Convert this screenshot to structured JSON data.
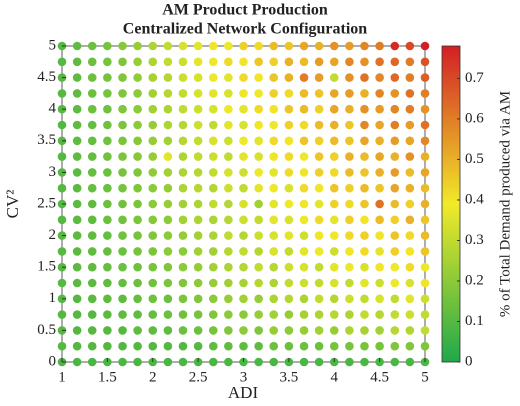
{
  "chart_data": {
    "type": "scatter-grid",
    "title": "AM Product Production",
    "subtitle": "Centralized Network Configuration",
    "xlabel": "ADI",
    "ylabel": "CV²",
    "colorbar_label": "% of Total Demand produced via AM",
    "x": [
      1,
      1.167,
      1.333,
      1.5,
      1.667,
      1.833,
      2,
      2.167,
      2.333,
      2.5,
      2.667,
      2.833,
      3,
      3.167,
      3.333,
      3.5,
      3.667,
      3.833,
      4,
      4.167,
      4.333,
      4.5,
      4.667,
      4.833,
      5
    ],
    "y": [
      0,
      0.25,
      0.5,
      0.75,
      1,
      1.25,
      1.5,
      1.75,
      2,
      2.25,
      2.5,
      2.75,
      3,
      3.25,
      3.5,
      3.75,
      4,
      4.25,
      4.5,
      4.75,
      5
    ],
    "values": [
      [
        0.08,
        0.08,
        0.08,
        0.08,
        0.08,
        0.08,
        0.08,
        0.08,
        0.08,
        0.08,
        0.08,
        0.08,
        0.08,
        0.08,
        0.08,
        0.08,
        0.08,
        0.08,
        0.08,
        0.08,
        0.08,
        0.08,
        0.08,
        0.08,
        0.08
      ],
      [
        0.1,
        0.1,
        0.1,
        0.1,
        0.1,
        0.1,
        0.1,
        0.1,
        0.1,
        0.1,
        0.12,
        0.12,
        0.12,
        0.12,
        0.14,
        0.14,
        0.14,
        0.14,
        0.16,
        0.16,
        0.16,
        0.16,
        0.18,
        0.18,
        0.18
      ],
      [
        0.1,
        0.1,
        0.1,
        0.1,
        0.1,
        0.12,
        0.12,
        0.12,
        0.14,
        0.14,
        0.16,
        0.18,
        0.2,
        0.18,
        0.22,
        0.2,
        0.22,
        0.24,
        0.22,
        0.26,
        0.25,
        0.24,
        0.28,
        0.27,
        0.3
      ],
      [
        0.1,
        0.1,
        0.1,
        0.11,
        0.12,
        0.12,
        0.13,
        0.14,
        0.15,
        0.16,
        0.18,
        0.2,
        0.2,
        0.22,
        0.24,
        0.22,
        0.25,
        0.26,
        0.28,
        0.26,
        0.3,
        0.28,
        0.3,
        0.32,
        0.3
      ],
      [
        0.1,
        0.1,
        0.11,
        0.12,
        0.12,
        0.13,
        0.15,
        0.14,
        0.17,
        0.18,
        0.2,
        0.22,
        0.24,
        0.22,
        0.26,
        0.28,
        0.26,
        0.3,
        0.28,
        0.32,
        0.3,
        0.34,
        0.3,
        0.36,
        0.32
      ],
      [
        0.1,
        0.11,
        0.11,
        0.12,
        0.13,
        0.14,
        0.15,
        0.17,
        0.18,
        0.2,
        0.22,
        0.24,
        0.25,
        0.28,
        0.26,
        0.3,
        0.32,
        0.3,
        0.34,
        0.3,
        0.36,
        0.32,
        0.38,
        0.34,
        0.4
      ],
      [
        0.1,
        0.11,
        0.12,
        0.13,
        0.14,
        0.15,
        0.16,
        0.18,
        0.2,
        0.22,
        0.24,
        0.26,
        0.28,
        0.3,
        0.28,
        0.32,
        0.34,
        0.3,
        0.36,
        0.38,
        0.34,
        0.4,
        0.38,
        0.42,
        0.38
      ],
      [
        0.1,
        0.11,
        0.12,
        0.13,
        0.14,
        0.16,
        0.17,
        0.2,
        0.2,
        0.24,
        0.24,
        0.28,
        0.3,
        0.28,
        0.34,
        0.3,
        0.36,
        0.38,
        0.32,
        0.4,
        0.42,
        0.36,
        0.44,
        0.4,
        0.46
      ],
      [
        0.1,
        0.11,
        0.12,
        0.13,
        0.15,
        0.16,
        0.18,
        0.2,
        0.22,
        0.24,
        0.26,
        0.3,
        0.28,
        0.32,
        0.34,
        0.36,
        0.32,
        0.4,
        0.38,
        0.42,
        0.44,
        0.4,
        0.46,
        0.42,
        0.48
      ],
      [
        0.1,
        0.11,
        0.12,
        0.14,
        0.15,
        0.17,
        0.19,
        0.2,
        0.24,
        0.26,
        0.26,
        0.28,
        0.32,
        0.3,
        0.36,
        0.34,
        0.38,
        0.42,
        0.36,
        0.44,
        0.4,
        0.48,
        0.44,
        0.5,
        0.46
      ],
      [
        0.1,
        0.11,
        0.12,
        0.14,
        0.15,
        0.17,
        0.2,
        0.22,
        0.24,
        0.26,
        0.3,
        0.28,
        0.34,
        0.24,
        0.36,
        0.38,
        0.4,
        0.36,
        0.44,
        0.42,
        0.46,
        0.62,
        0.48,
        0.44,
        0.5
      ],
      [
        0.1,
        0.11,
        0.13,
        0.14,
        0.16,
        0.18,
        0.2,
        0.22,
        0.26,
        0.28,
        0.28,
        0.32,
        0.3,
        0.36,
        0.38,
        0.34,
        0.42,
        0.4,
        0.46,
        0.44,
        0.48,
        0.46,
        0.52,
        0.5,
        0.48
      ],
      [
        0.1,
        0.11,
        0.13,
        0.14,
        0.16,
        0.18,
        0.21,
        0.24,
        0.26,
        0.28,
        0.3,
        0.34,
        0.32,
        0.38,
        0.36,
        0.42,
        0.4,
        0.44,
        0.42,
        0.48,
        0.46,
        0.5,
        0.54,
        0.48,
        0.52
      ],
      [
        0.1,
        0.12,
        0.13,
        0.15,
        0.17,
        0.19,
        0.22,
        0.36,
        0.26,
        0.3,
        0.32,
        0.3,
        0.36,
        0.34,
        0.4,
        0.42,
        0.38,
        0.46,
        0.44,
        0.5,
        0.48,
        0.52,
        0.5,
        0.56,
        0.5
      ],
      [
        0.1,
        0.12,
        0.13,
        0.15,
        0.17,
        0.19,
        0.22,
        0.24,
        0.28,
        0.3,
        0.34,
        0.32,
        0.38,
        0.36,
        0.42,
        0.4,
        0.46,
        0.44,
        0.48,
        0.46,
        0.52,
        0.5,
        0.54,
        0.52,
        0.58
      ],
      [
        0.1,
        0.12,
        0.13,
        0.15,
        0.17,
        0.2,
        0.22,
        0.26,
        0.28,
        0.32,
        0.3,
        0.36,
        0.34,
        0.4,
        0.38,
        0.44,
        0.42,
        0.48,
        0.5,
        0.46,
        0.58,
        0.52,
        0.6,
        0.54,
        0.62
      ],
      [
        0.1,
        0.12,
        0.14,
        0.15,
        0.18,
        0.2,
        0.24,
        0.26,
        0.3,
        0.32,
        0.34,
        0.38,
        0.36,
        0.42,
        0.4,
        0.46,
        0.48,
        0.44,
        0.52,
        0.5,
        0.56,
        0.54,
        0.58,
        0.6,
        0.56
      ],
      [
        0.1,
        0.12,
        0.14,
        0.16,
        0.18,
        0.2,
        0.24,
        0.28,
        0.3,
        0.34,
        0.36,
        0.34,
        0.4,
        0.38,
        0.44,
        0.42,
        0.48,
        0.46,
        0.52,
        0.54,
        0.5,
        0.58,
        0.56,
        0.62,
        0.6
      ],
      [
        0.1,
        0.12,
        0.14,
        0.16,
        0.18,
        0.21,
        0.25,
        0.28,
        0.32,
        0.34,
        0.38,
        0.36,
        0.42,
        0.4,
        0.46,
        0.5,
        0.6,
        0.54,
        0.3,
        0.56,
        0.62,
        0.58,
        0.64,
        0.6,
        0.66
      ],
      [
        0.1,
        0.12,
        0.14,
        0.16,
        0.18,
        0.22,
        0.26,
        0.3,
        0.32,
        0.36,
        0.38,
        0.42,
        0.4,
        0.46,
        0.44,
        0.5,
        0.48,
        0.54,
        0.52,
        0.58,
        0.56,
        0.62,
        0.64,
        0.6,
        0.68
      ],
      [
        0.1,
        0.12,
        0.14,
        0.16,
        0.19,
        0.22,
        0.26,
        0.3,
        0.34,
        0.36,
        0.4,
        0.38,
        0.44,
        0.42,
        0.48,
        0.46,
        0.52,
        0.5,
        0.56,
        0.54,
        0.58,
        0.6,
        0.76,
        0.7,
        0.78
      ]
    ],
    "xlim": [
      1,
      5
    ],
    "ylim": [
      0,
      5
    ],
    "xticks": [
      1,
      1.5,
      2,
      2.5,
      3,
      3.5,
      4,
      4.5,
      5
    ],
    "yticks": [
      0,
      0.5,
      1,
      1.5,
      2,
      2.5,
      3,
      3.5,
      4,
      4.5,
      5
    ],
    "clim": [
      0,
      0.78
    ],
    "cticks": [
      0,
      0.1,
      0.2,
      0.3,
      0.4,
      0.5,
      0.6,
      0.7
    ],
    "colormap": [
      "#1fa84a",
      "#f2ea28",
      "#d21f26"
    ]
  }
}
